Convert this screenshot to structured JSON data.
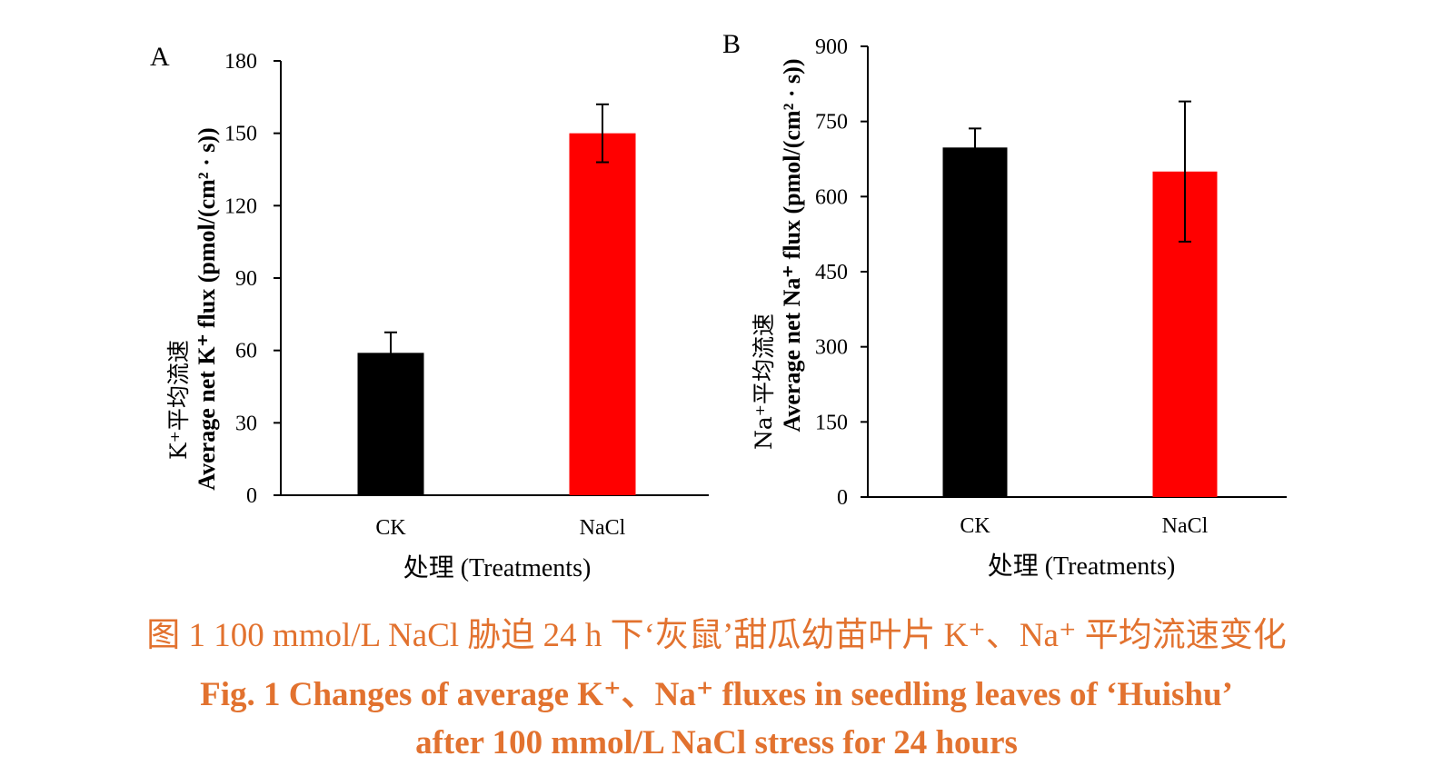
{
  "colors": {
    "axis": "#000000",
    "ck": "#000000",
    "nacl": "#ff0000",
    "caption": "#e2722f"
  },
  "chart_data": [
    {
      "type": "bar",
      "panel_label": "A",
      "categories": [
        "CK",
        "NaCl"
      ],
      "series": [
        {
          "values": [
            59,
            150
          ],
          "errors": [
            8.5,
            12
          ],
          "colors": [
            "#000000",
            "#ff0000"
          ]
        }
      ],
      "ylim": [
        0,
        180
      ],
      "yticks": [
        0,
        30,
        60,
        90,
        120,
        150,
        180
      ],
      "xlabel": "处理 (Treatments)",
      "ylabel_cn": "K⁺平均流速",
      "ylabel_en": "Average net K⁺ flux (pmol/(cm² · s))"
    },
    {
      "type": "bar",
      "panel_label": "B",
      "categories": [
        "CK",
        "NaCl"
      ],
      "series": [
        {
          "values": [
            698,
            650
          ],
          "errors": [
            38,
            140
          ],
          "colors": [
            "#000000",
            "#ff0000"
          ]
        }
      ],
      "ylim": [
        0,
        900
      ],
      "yticks": [
        0,
        150,
        300,
        450,
        600,
        750,
        900
      ],
      "xlabel": "处理 (Treatments)",
      "ylabel_cn": "Na⁺平均流速",
      "ylabel_en": "Average net Na⁺ flux (pmol/(cm² · s))"
    }
  ],
  "caption": {
    "line1": "图 1   100 mmol/L NaCl 胁迫 24 h 下‘灰鼠’甜瓜幼苗叶片 K⁺、Na⁺ 平均流速变化",
    "line2": "Fig. 1   Changes of average K⁺、Na⁺ fluxes in seedling leaves of ‘Huishu’",
    "line3": "after 100 mmol/L NaCl stress for 24 hours"
  }
}
